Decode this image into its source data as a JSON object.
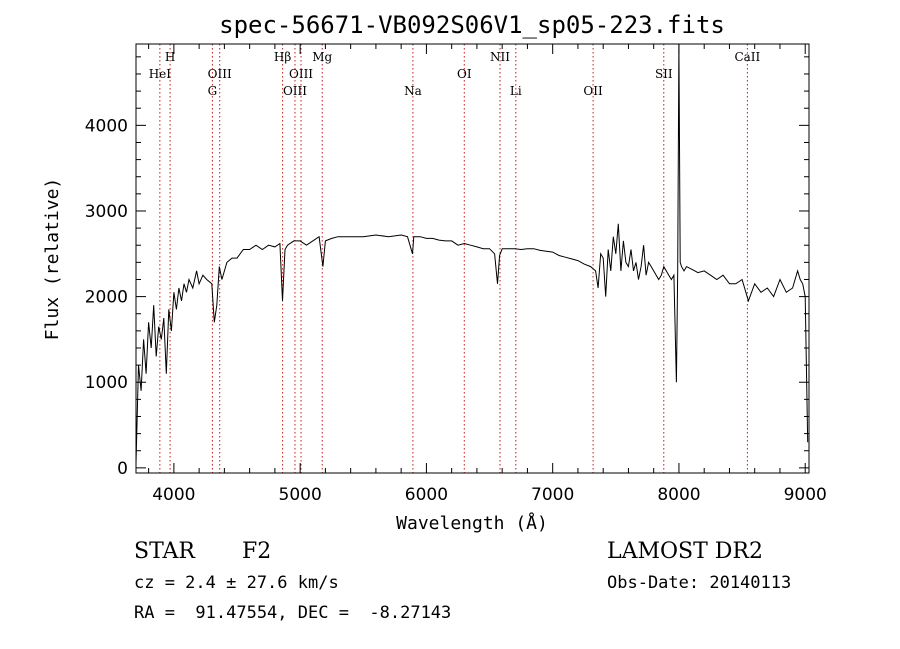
{
  "chart_data": {
    "type": "line",
    "title": "spec-56671-VB092S06V1_sp05-223.fits",
    "xlabel": "Wavelength (Å)",
    "ylabel": "Flux (relative)",
    "xlim": [
      3700,
      9030
    ],
    "ylim": [
      -60,
      4950
    ],
    "x_ticks": [
      4000,
      5000,
      6000,
      7000,
      8000,
      9000
    ],
    "y_ticks": [
      0,
      1000,
      2000,
      3000,
      4000
    ],
    "grid": false,
    "line_color": "#000000",
    "marker_line_color": "#b22222",
    "lines": [
      {
        "label": "HeI",
        "wavelength": 3889,
        "row": 2
      },
      {
        "label": "H",
        "wavelength": 3970,
        "row": 1
      },
      {
        "label": "G",
        "wavelength": 4305,
        "row": 3
      },
      {
        "label": "OIII",
        "wavelength": 4363,
        "row": 2
      },
      {
        "label": "Hβ",
        "wavelength": 4861,
        "row": 1
      },
      {
        "label": "OIII",
        "wavelength": 4959,
        "row": 3
      },
      {
        "label": "OIII",
        "wavelength": 5007,
        "row": 2
      },
      {
        "label": "Mg",
        "wavelength": 5175,
        "row": 1
      },
      {
        "label": "Na",
        "wavelength": 5893,
        "row": 3
      },
      {
        "label": "OI",
        "wavelength": 6300,
        "row": 2
      },
      {
        "label": "NII",
        "wavelength": 6583,
        "row": 1
      },
      {
        "label": "Li",
        "wavelength": 6708,
        "row": 3
      },
      {
        "label": "OII",
        "wavelength": 7320,
        "row": 3
      },
      {
        "label": "SII",
        "wavelength": 7880,
        "row": 2
      },
      {
        "label": "CaII",
        "wavelength": 8542,
        "row": 1
      }
    ],
    "series": [
      {
        "x": [
          3700,
          3720,
          3740,
          3760,
          3780,
          3800,
          3820,
          3840,
          3860,
          3880,
          3900,
          3920,
          3940,
          3960,
          3980,
          4000,
          4020,
          4040,
          4060,
          4080,
          4100,
          4120,
          4150,
          4180,
          4200,
          4230,
          4260,
          4300,
          4320,
          4340,
          4360,
          4380,
          4420,
          4460,
          4500,
          4550,
          4600,
          4650,
          4700,
          4750,
          4800,
          4840,
          4860,
          4880,
          4900,
          4950,
          5000,
          5050,
          5100,
          5150,
          5180,
          5200,
          5250,
          5300,
          5400,
          5500,
          5600,
          5700,
          5800,
          5850,
          5890,
          5900,
          5950,
          6000,
          6050,
          6100,
          6150,
          6200,
          6250,
          6300,
          6350,
          6400,
          6450,
          6500,
          6540,
          6563,
          6580,
          6600,
          6650,
          6700,
          6750,
          6800,
          6850,
          6900,
          6950,
          7000,
          7050,
          7100,
          7150,
          7200,
          7250,
          7300,
          7340,
          7360,
          7380,
          7400,
          7420,
          7440,
          7460,
          7480,
          7500,
          7520,
          7540,
          7560,
          7580,
          7600,
          7620,
          7640,
          7660,
          7680,
          7700,
          7720,
          7740,
          7760,
          7780,
          7800,
          7820,
          7840,
          7860,
          7880,
          7900,
          7920,
          7940,
          7960,
          7980,
          7990,
          8000,
          8010,
          8020,
          8040,
          8060,
          8100,
          8150,
          8200,
          8250,
          8300,
          8350,
          8400,
          8450,
          8500,
          8550,
          8600,
          8650,
          8700,
          8750,
          8800,
          8850,
          8900,
          8940,
          8960,
          8980,
          9000,
          9020
        ],
        "y": [
          50,
          1200,
          900,
          1500,
          1100,
          1700,
          1400,
          1900,
          1300,
          1650,
          1500,
          1750,
          1100,
          1850,
          1600,
          2050,
          1850,
          2100,
          1950,
          2150,
          2050,
          2200,
          2100,
          2300,
          2150,
          2250,
          2200,
          2150,
          1700,
          1900,
          2350,
          2200,
          2400,
          2450,
          2450,
          2550,
          2550,
          2600,
          2550,
          2600,
          2580,
          2620,
          1950,
          2550,
          2600,
          2650,
          2650,
          2600,
          2650,
          2700,
          2350,
          2650,
          2680,
          2700,
          2700,
          2700,
          2720,
          2700,
          2720,
          2700,
          2500,
          2700,
          2700,
          2680,
          2680,
          2660,
          2650,
          2650,
          2600,
          2620,
          2600,
          2580,
          2560,
          2560,
          2500,
          2150,
          2480,
          2560,
          2560,
          2560,
          2550,
          2560,
          2560,
          2540,
          2530,
          2520,
          2480,
          2460,
          2440,
          2420,
          2380,
          2350,
          2300,
          2100,
          2500,
          2450,
          2000,
          2550,
          2300,
          2700,
          2500,
          2850,
          2300,
          2650,
          2400,
          2350,
          2550,
          2300,
          2400,
          2200,
          2350,
          2600,
          2250,
          2400,
          2350,
          2300,
          2250,
          2200,
          2250,
          2350,
          2300,
          2250,
          2200,
          2250,
          1000,
          2300,
          4950,
          2400,
          2350,
          2300,
          2350,
          2320,
          2280,
          2300,
          2250,
          2200,
          2250,
          2150,
          2150,
          2200,
          1950,
          2150,
          2050,
          2100,
          2000,
          2200,
          2050,
          2100,
          2300,
          2200,
          2150,
          2000,
          300
        ]
      }
    ]
  },
  "info": {
    "object_class": "STAR",
    "subclass": "F2",
    "survey": "LAMOST DR2",
    "cz_text": "cz = 2.4 ± 27.6 km/s",
    "obs_date_text": "Obs-Date: 20140113",
    "radec_text": "RA =  91.47554, DEC =  -8.27143"
  }
}
